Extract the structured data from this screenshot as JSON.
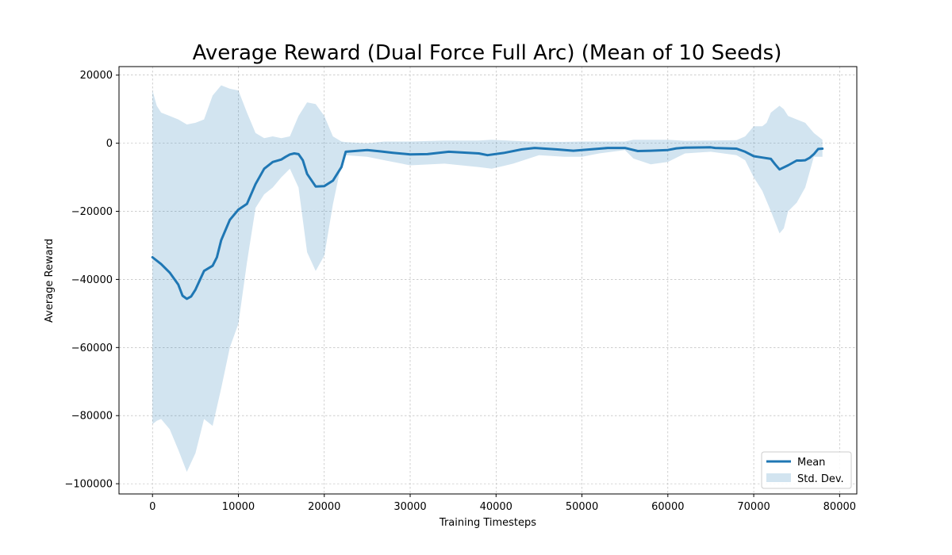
{
  "chart_data": {
    "type": "line",
    "title": "Average Reward (Dual Force Full Arc) (Mean of 10 Seeds)",
    "xlabel": "Training Timesteps",
    "ylabel": "Average Reward",
    "xlim": [
      -3900,
      82000
    ],
    "ylim": [
      -103000,
      22500
    ],
    "xticks": [
      0,
      10000,
      20000,
      30000,
      40000,
      50000,
      60000,
      70000,
      80000
    ],
    "xtick_labels": [
      "0",
      "10000",
      "20000",
      "30000",
      "40000",
      "50000",
      "60000",
      "70000",
      "80000"
    ],
    "yticks": [
      -100000,
      -80000,
      -60000,
      -40000,
      -20000,
      0,
      20000
    ],
    "ytick_labels": [
      "−100000",
      "−80000",
      "−60000",
      "−40000",
      "−20000",
      "0",
      "20000"
    ],
    "grid": true,
    "legend_position": "lower-right",
    "colors": {
      "mean": "#1f77b4",
      "band": "#1f77b4"
    },
    "series": [
      {
        "name": "Mean",
        "kind": "line",
        "x": [
          0,
          1000,
          2000,
          3000,
          3500,
          4000,
          4500,
          5000,
          6000,
          7000,
          7500,
          8000,
          9000,
          10000,
          11000,
          12000,
          13000,
          14000,
          15000,
          15500,
          16000,
          16500,
          17000,
          17500,
          18000,
          19000,
          20000,
          21000,
          22000,
          22500,
          25000,
          26500,
          28000,
          30000,
          32000,
          34500,
          38000,
          39000,
          41000,
          43000,
          44500,
          47000,
          49000,
          51000,
          53000,
          55000,
          56500,
          58000,
          60000,
          61000,
          62000,
          65000,
          65500,
          68000,
          69000,
          70000,
          71000,
          72000,
          72500,
          73000,
          74000,
          75000,
          75500,
          76000,
          76500,
          77000,
          77500,
          78000
        ],
        "values": [
          -33500,
          -35500,
          -38000,
          -41500,
          -44800,
          -45700,
          -45000,
          -43000,
          -37500,
          -36000,
          -33500,
          -28500,
          -22500,
          -19500,
          -17800,
          -12000,
          -7500,
          -5500,
          -4800,
          -4000,
          -3300,
          -3000,
          -3200,
          -5000,
          -9000,
          -12700,
          -12600,
          -11000,
          -7000,
          -2500,
          -2000,
          -2400,
          -2800,
          -3300,
          -3200,
          -2500,
          -3000,
          -3500,
          -2800,
          -1800,
          -1400,
          -1800,
          -2200,
          -1800,
          -1400,
          -1400,
          -2300,
          -2200,
          -2000,
          -1500,
          -1300,
          -1200,
          -1400,
          -1600,
          -2500,
          -3800,
          -4200,
          -4600,
          -6200,
          -7700,
          -6500,
          -5100,
          -5100,
          -5000,
          -4300,
          -3200,
          -1700,
          -1600
        ]
      },
      {
        "name": "Std. Dev.",
        "kind": "band",
        "x": [
          0,
          500,
          1000,
          2000,
          3000,
          4000,
          5000,
          6000,
          7000,
          8000,
          9000,
          10000,
          11000,
          12000,
          13000,
          14000,
          15000,
          16000,
          17000,
          18000,
          19000,
          20000,
          21000,
          22000,
          22500,
          25000,
          27000,
          30000,
          34000,
          38000,
          39500,
          42000,
          45000,
          48000,
          50000,
          52000,
          55000,
          56000,
          58000,
          60000,
          62000,
          65000,
          68000,
          69000,
          70000,
          71000,
          71500,
          72000,
          73000,
          73500,
          74000,
          75000,
          76000,
          77000,
          78000
        ],
        "upper": [
          15500,
          11000,
          9000,
          8000,
          7000,
          5500,
          6000,
          7000,
          14000,
          17000,
          16000,
          15500,
          9000,
          3000,
          1500,
          2000,
          1500,
          2000,
          8000,
          12000,
          11500,
          8000,
          2000,
          500,
          300,
          0,
          500,
          500,
          800,
          800,
          1000,
          700,
          400,
          400,
          500,
          500,
          500,
          1000,
          1000,
          1000,
          700,
          800,
          900,
          2000,
          5000,
          5000,
          6000,
          9000,
          11000,
          10000,
          8000,
          7000,
          6000,
          3000,
          1000
        ],
        "lower": [
          -82500,
          -81500,
          -81000,
          -84000,
          -90000,
          -96500,
          -91000,
          -81000,
          -83000,
          -72000,
          -60000,
          -53000,
          -35000,
          -19000,
          -15000,
          -13000,
          -10000,
          -7500,
          -13000,
          -32000,
          -37500,
          -33000,
          -18000,
          -6000,
          -3500,
          -4000,
          -5000,
          -6500,
          -6000,
          -7000,
          -7500,
          -6000,
          -3500,
          -4000,
          -4000,
          -3000,
          -2000,
          -4500,
          -6200,
          -5500,
          -3000,
          -2500,
          -3500,
          -5000,
          -10000,
          -14000,
          -17000,
          -20000,
          -26500,
          -25000,
          -20000,
          -17500,
          -13000,
          -4000,
          -4000
        ]
      }
    ]
  }
}
